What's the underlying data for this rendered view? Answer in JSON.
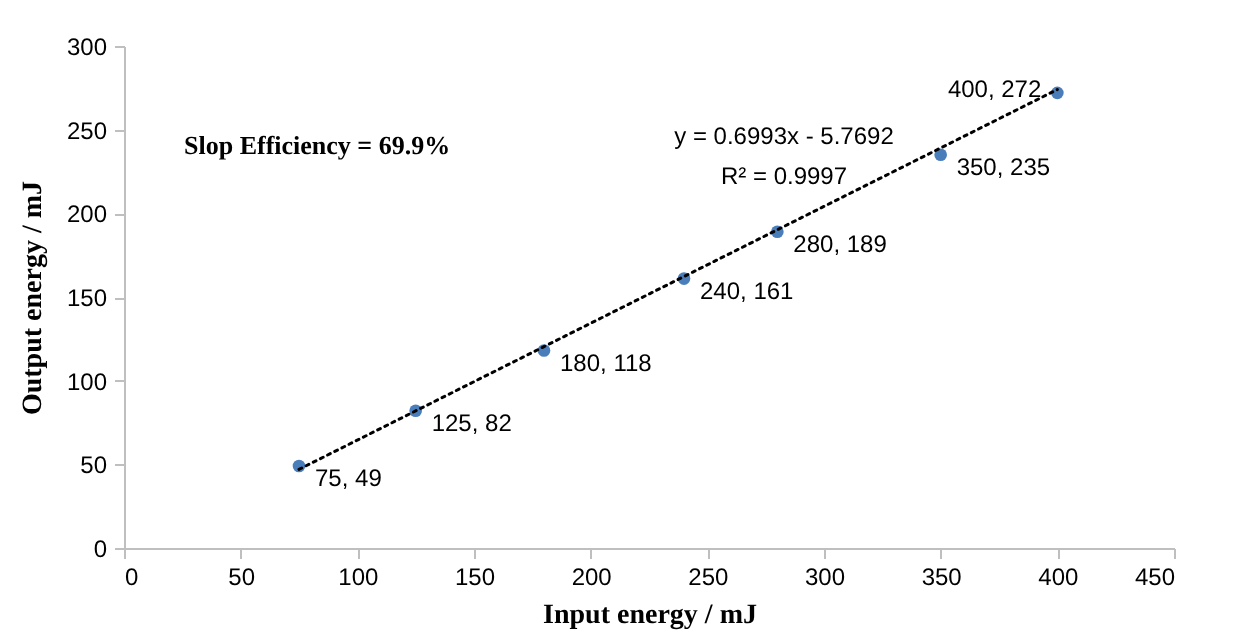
{
  "chart_data": {
    "type": "scatter",
    "xlabel": "Input energy / mJ",
    "ylabel": "Output  energy / mJ",
    "x": [
      75,
      125,
      180,
      240,
      280,
      350,
      400
    ],
    "series": [
      {
        "color": "#4a7ebb",
        "marker": "circle",
        "values": [
          49,
          82,
          118,
          161,
          189,
          235,
          272
        ],
        "value_labels": [
          "75, 49",
          "125, 82",
          "180, 118",
          "240, 161",
          "280, 189",
          "350, 235",
          "400, 272"
        ]
      },
      {
        "type": "line",
        "color": "#000000",
        "line_style": "dotted",
        "marker": "none",
        "x": [
          75,
          400
        ],
        "values": [
          47,
          274
        ]
      }
    ],
    "annotations": [
      "Slop Efficiency = 69.9%",
      "y = 0.6993x - 5.7692",
      "R² = 0.9997"
    ],
    "xlim": [
      0,
      450
    ],
    "xticks": [
      0,
      50,
      100,
      150,
      200,
      250,
      300,
      350,
      400,
      450
    ],
    "ylim": [
      0,
      300
    ],
    "yticks": [
      0,
      50,
      100,
      150,
      200,
      250,
      300
    ],
    "grid": false
  }
}
